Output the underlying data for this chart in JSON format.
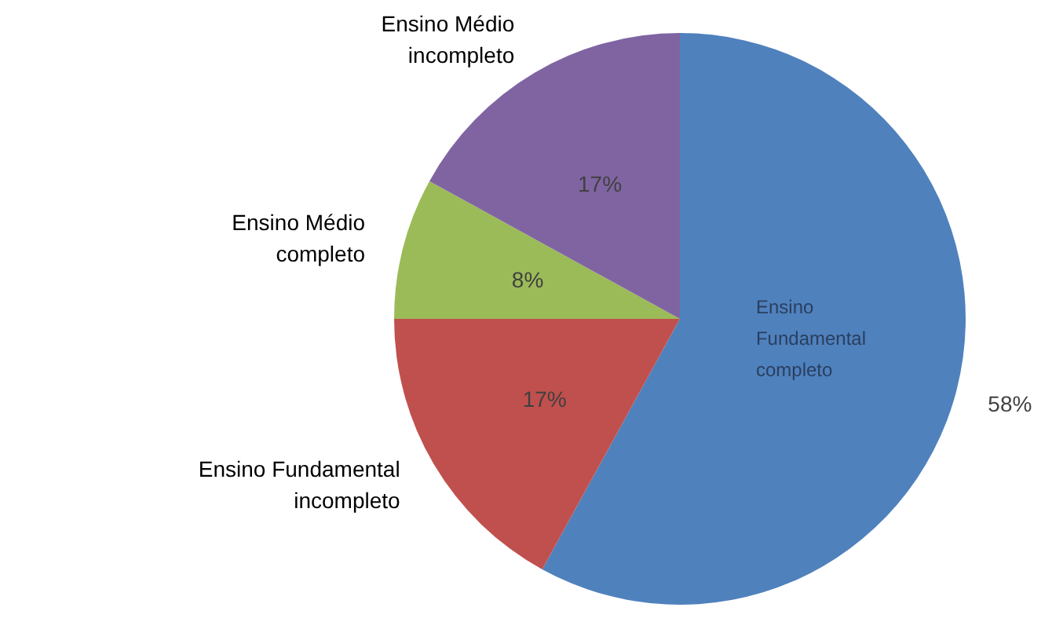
{
  "chart_data": {
    "type": "pie",
    "categories": [
      "Ensino Fundamental completo",
      "Ensino Fundamental incompleto",
      "Ensino Médio completo",
      "Ensino Médio incompleto"
    ],
    "values": [
      58,
      17,
      8,
      17
    ],
    "colors": [
      "#4f81bd",
      "#c0504d",
      "#9bbb59",
      "#8064a2"
    ],
    "value_labels": [
      "58%",
      "17%",
      "8%",
      "17%"
    ],
    "legend": false
  }
}
